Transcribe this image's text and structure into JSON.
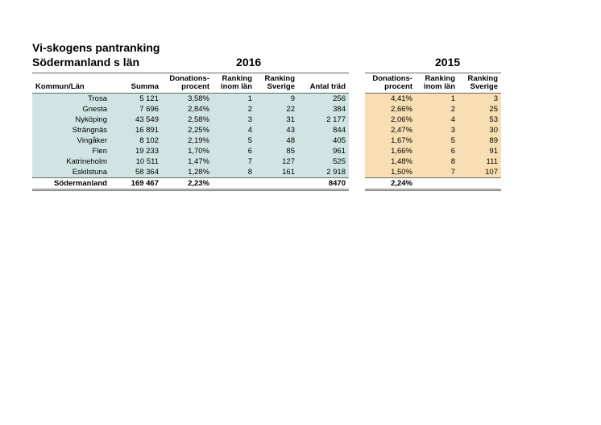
{
  "title_line1": "Vi-skogens pantranking",
  "title_line2": "Södermanland s län",
  "year_2016": "2016",
  "year_2015": "2015",
  "columns": {
    "kommun": "Kommun/Län",
    "summa": "Summa",
    "don_pct_1": "Donations-",
    "don_pct_2": "procent",
    "rank_lan_1": "Ranking",
    "rank_lan_2": "inom län",
    "rank_sv_1": "Ranking",
    "rank_sv_2": "Sverige",
    "trees": "Antal träd"
  },
  "rows": [
    {
      "name": "Trosa",
      "summa": "5 121",
      "pct16": "3,58%",
      "rl16": "1",
      "rs16": "9",
      "trees": "256",
      "pct15": "4,41%",
      "rl15": "1",
      "rs15": "3"
    },
    {
      "name": "Gnesta",
      "summa": "7 696",
      "pct16": "2,84%",
      "rl16": "2",
      "rs16": "22",
      "trees": "384",
      "pct15": "2,66%",
      "rl15": "2",
      "rs15": "25"
    },
    {
      "name": "Nyköping",
      "summa": "43 549",
      "pct16": "2,58%",
      "rl16": "3",
      "rs16": "31",
      "trees": "2 177",
      "pct15": "2,06%",
      "rl15": "4",
      "rs15": "53"
    },
    {
      "name": "Strängnäs",
      "summa": "16 891",
      "pct16": "2,25%",
      "rl16": "4",
      "rs16": "43",
      "trees": "844",
      "pct15": "2,47%",
      "rl15": "3",
      "rs15": "30"
    },
    {
      "name": "Vingåker",
      "summa": "8 102",
      "pct16": "2,19%",
      "rl16": "5",
      "rs16": "48",
      "trees": "405",
      "pct15": "1,67%",
      "rl15": "5",
      "rs15": "89"
    },
    {
      "name": "Flen",
      "summa": "19 233",
      "pct16": "1,70%",
      "rl16": "6",
      "rs16": "85",
      "trees": "961",
      "pct15": "1,66%",
      "rl15": "6",
      "rs15": "91"
    },
    {
      "name": "Katrineholm",
      "summa": "10 511",
      "pct16": "1,47%",
      "rl16": "7",
      "rs16": "127",
      "trees": "525",
      "pct15": "1,48%",
      "rl15": "8",
      "rs15": "111"
    },
    {
      "name": "Eskilstuna",
      "summa": "58 364",
      "pct16": "1,28%",
      "rl16": "8",
      "rs16": "161",
      "trees": "2 918",
      "pct15": "1,50%",
      "rl15": "7",
      "rs15": "107"
    }
  ],
  "totals": {
    "name": "Södermanland",
    "summa": "169 467",
    "pct16": "2,23%",
    "trees": "8470",
    "pct15": "2,24%"
  },
  "colors": {
    "bg2016": "#d0e4e4",
    "bg2015": "#f7dfb3",
    "border": "#666666"
  },
  "col_widths": {
    "name": 95,
    "summa": 50,
    "pct": 55,
    "rl": 45,
    "rs": 45,
    "trees": 55,
    "gap": 20
  }
}
